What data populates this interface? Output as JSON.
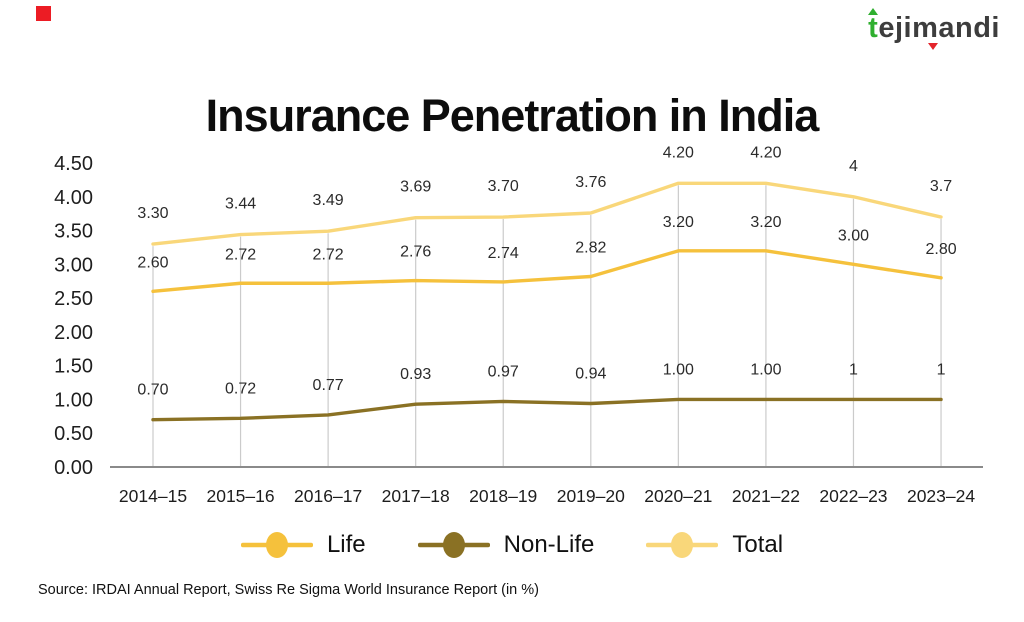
{
  "header": {
    "logo": {
      "part_t": "t",
      "part_eji": "eji",
      "part_m": "m",
      "part_andi": "andi"
    },
    "title": "Insurance Penetration in India"
  },
  "chart_data": {
    "type": "line",
    "title": "Insurance Penetration in India",
    "categories": [
      "2014–15",
      "2015–16",
      "2016–17",
      "2017–18",
      "2018–19",
      "2019–20",
      "2020–21",
      "2021–22",
      "2022–23",
      "2023–24"
    ],
    "series": [
      {
        "name": "Life",
        "color": "#F5C13C",
        "values": [
          "2.60",
          "2.72",
          "2.72",
          "2.76",
          "2.74",
          "2.82",
          "3.20",
          "3.20",
          "3.00",
          "2.80"
        ]
      },
      {
        "name": "Non-Life",
        "color": "#8A7124",
        "values": [
          "0.70",
          "0.72",
          "0.77",
          "0.93",
          "0.97",
          "0.94",
          "1.00",
          "1.00",
          "1",
          "1"
        ]
      },
      {
        "name": "Total",
        "color": "#F9D77A",
        "values": [
          "3.30",
          "3.44",
          "3.49",
          "3.69",
          "3.70",
          "3.76",
          "4.20",
          "4.20",
          "4",
          "3.7"
        ]
      }
    ],
    "y_ticks": [
      "4.50",
      "4.00",
      "3.50",
      "3.00",
      "2.50",
      "2.00",
      "1.50",
      "1.00",
      "0.50",
      "0.00"
    ],
    "ylim": [
      0,
      4.5
    ],
    "xlabel": "",
    "ylabel": "",
    "grid": "vertical-droplines",
    "legend_position": "bottom"
  },
  "source": "Source: IRDAI Annual Report, Swiss Re Sigma World Insurance Report (in %)",
  "colors": {
    "accent_red": "#EC1C24",
    "logo_green": "#2FAF2F",
    "logo_red": "#E3242B",
    "logo_text": "#3D3D3D",
    "axis_line": "#8A8A8A",
    "grid_line": "#CBCBCB",
    "label_text": "#2B2B2B"
  }
}
